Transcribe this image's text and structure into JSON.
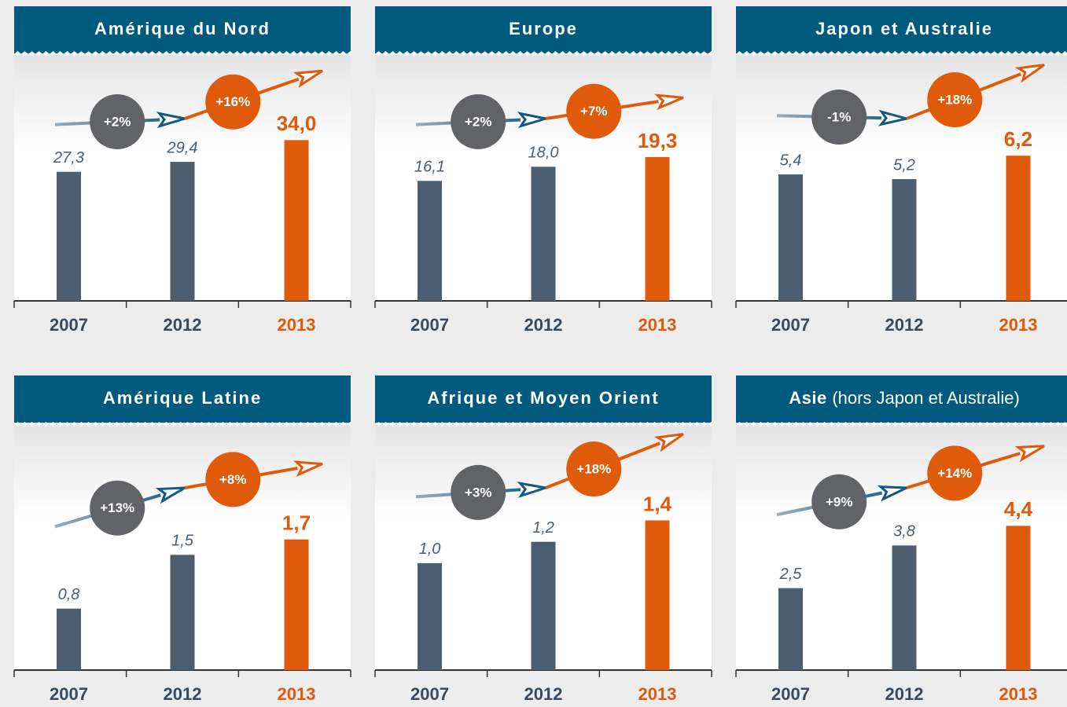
{
  "chart_data": [
    {
      "type": "bar",
      "title": "Amérique du Nord",
      "categories": [
        "2007",
        "2012",
        "2013"
      ],
      "values": [
        27.3,
        29.4,
        34.0
      ],
      "value_labels": [
        "27,3",
        "29,4",
        "34,0"
      ],
      "changes": [
        2,
        16
      ],
      "change_labels": [
        "+2%",
        "+16%"
      ],
      "ylim": [
        0,
        52
      ],
      "bar_color": "#4d5e70",
      "highlight_color": "#e05a0c"
    },
    {
      "type": "bar",
      "title": "Europe",
      "categories": [
        "2007",
        "2012",
        "2013"
      ],
      "values": [
        16.1,
        18.0,
        19.3
      ],
      "value_labels": [
        "16,1",
        "18,0",
        "19,3"
      ],
      "changes": [
        2,
        7
      ],
      "change_labels": [
        "+2%",
        "+7%"
      ],
      "ylim": [
        0,
        33
      ],
      "bar_color": "#4d5e70",
      "highlight_color": "#e05a0c"
    },
    {
      "type": "bar",
      "title": "Japon et Australie",
      "categories": [
        "2007",
        "2012",
        "2013"
      ],
      "values": [
        5.4,
        5.2,
        6.2
      ],
      "value_labels": [
        "5,4",
        "5,2",
        "6,2"
      ],
      "changes": [
        -1,
        18
      ],
      "change_labels": [
        "-1%",
        "+18%"
      ],
      "ylim": [
        0,
        10.5
      ],
      "bar_color": "#4d5e70",
      "highlight_color": "#e05a0c"
    },
    {
      "type": "bar",
      "title": "Amérique Latine",
      "categories": [
        "2007",
        "2012",
        "2013"
      ],
      "values": [
        0.8,
        1.5,
        1.7
      ],
      "value_labels": [
        "0,8",
        "1,5",
        "1,7"
      ],
      "changes": [
        13,
        8
      ],
      "change_labels": [
        "+13%",
        "+8%"
      ],
      "ylim": [
        0,
        3.2
      ],
      "bar_color": "#4d5e70",
      "highlight_color": "#e05a0c"
    },
    {
      "type": "bar",
      "title": "Afrique et Moyen Orient",
      "categories": [
        "2007",
        "2012",
        "2013"
      ],
      "values": [
        1.0,
        1.2,
        1.4
      ],
      "value_labels": [
        "1,0",
        "1,2",
        "1,4"
      ],
      "changes": [
        3,
        18
      ],
      "change_labels": [
        "+3%",
        "+18%"
      ],
      "ylim": [
        0,
        2.3
      ],
      "bar_color": "#4d5e70",
      "highlight_color": "#e05a0c"
    },
    {
      "type": "bar",
      "title": "Asie",
      "subtitle": "(hors Japon et Australie)",
      "categories": [
        "2007",
        "2012",
        "2013"
      ],
      "values": [
        2.5,
        3.8,
        4.4
      ],
      "value_labels": [
        "2,5",
        "3,8",
        "4,4"
      ],
      "changes": [
        9,
        14
      ],
      "change_labels": [
        "+9%",
        "+14%"
      ],
      "ylim": [
        0,
        7.5
      ],
      "bar_color": "#4d5e70",
      "highlight_color": "#e05a0c"
    }
  ]
}
